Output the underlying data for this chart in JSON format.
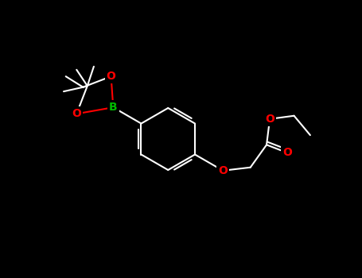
{
  "background_color": "#000000",
  "bond_color": "#ffffff",
  "atom_colors": {
    "O": "#ff0000",
    "B": "#00bb00"
  },
  "fig_width": 4.55,
  "fig_height": 3.5,
  "dpi": 100,
  "lw": 1.5,
  "xlim": [
    -4.2,
    4.2
  ],
  "ylim": [
    -3.0,
    3.0
  ]
}
